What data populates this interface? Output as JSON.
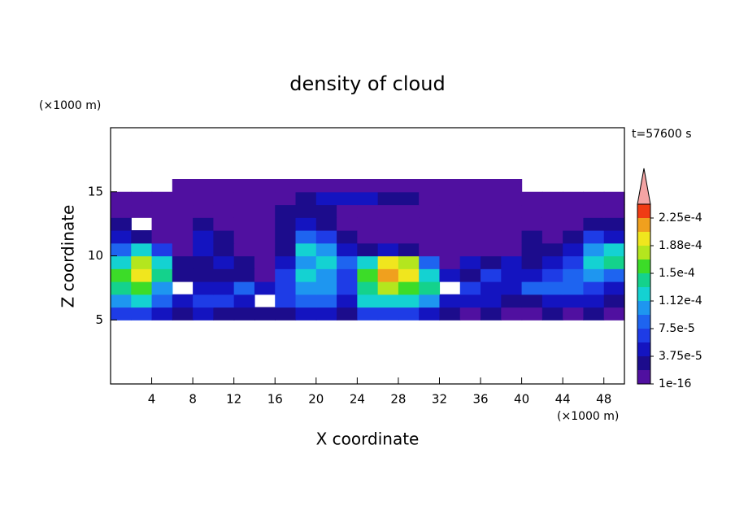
{
  "chart_data": {
    "type": "contour",
    "title": "density of cloud",
    "x_label": "X coordinate",
    "y_label": "Z coordinate",
    "x_unit": "(×1000 m)",
    "y_unit": "(×1000 m)",
    "time_label": "t=57600 s",
    "xlim": [
      0,
      50
    ],
    "xticks": [
      4,
      8,
      12,
      16,
      20,
      24,
      28,
      32,
      36,
      40,
      44,
      48
    ],
    "ylim": [
      0,
      20
    ],
    "yticks": [
      5,
      10,
      15
    ],
    "x": [
      1,
      3,
      5,
      7,
      9,
      11,
      13,
      15,
      17,
      19,
      21,
      23,
      25,
      27,
      29,
      31,
      33,
      35,
      37,
      39,
      41,
      43,
      45,
      47,
      49
    ],
    "y": [
      5.5,
      6.5,
      7.5,
      8.5,
      9.5,
      10.5,
      11.5,
      12.5,
      13.5,
      14.5,
      15.5
    ],
    "z": [
      [
        6e-05,
        7e-05,
        4e-05,
        3e-05,
        4e-05,
        3e-05,
        3e-05,
        2e-05,
        3e-05,
        4e-05,
        4e-05,
        2e-05,
        6e-05,
        7e-05,
        7e-05,
        5e-05,
        2e-05,
        1e-05,
        2e-05,
        1e-05,
        1e-05,
        2e-05,
        1e-05,
        2e-05,
        1e-05
      ],
      [
        0.00011,
        0.00012,
        9e-05,
        5e-05,
        7e-05,
        6e-05,
        5e-05,
        null,
        6e-05,
        9e-05,
        8e-05,
        5e-05,
        0.00012,
        0.00013,
        0.00013,
        0.00011,
        4e-05,
        5e-05,
        4e-05,
        3e-05,
        3e-05,
        5e-05,
        4e-05,
        4e-05,
        3e-05
      ],
      [
        0.00014,
        0.00016,
        0.00011,
        null,
        5e-05,
        4e-05,
        8e-05,
        4e-05,
        7e-05,
        0.0001,
        0.00011,
        7e-05,
        0.00014,
        0.00017,
        0.00016,
        0.00014,
        null,
        6e-05,
        5e-05,
        4e-05,
        8e-05,
        9e-05,
        8e-05,
        6e-05,
        5e-05
      ],
      [
        0.00015,
        0.00019,
        0.00014,
        3e-05,
        2e-05,
        2e-05,
        2e-05,
        1e-05,
        6e-05,
        0.00013,
        0.0001,
        7e-05,
        0.00015,
        0.00021,
        0.00019,
        0.00013,
        4e-05,
        2e-05,
        6e-05,
        5e-05,
        5e-05,
        7e-05,
        9e-05,
        0.00011,
        9e-05
      ],
      [
        0.00013,
        0.00018,
        0.00012,
        2e-05,
        3e-05,
        4e-05,
        2e-05,
        1e-05,
        5e-05,
        0.00011,
        0.00013,
        8e-05,
        0.00013,
        0.00019,
        0.00018,
        8e-05,
        1e-05,
        4e-05,
        2e-05,
        4e-05,
        2e-05,
        5e-05,
        7e-05,
        0.00012,
        0.00014
      ],
      [
        9e-05,
        0.00012,
        6e-05,
        1e-05,
        5e-05,
        2e-05,
        1e-05,
        1e-05,
        3e-05,
        0.00012,
        0.0001,
        5e-05,
        2e-05,
        4e-05,
        2e-05,
        1e-05,
        1e-05,
        1e-05,
        1e-05,
        1e-05,
        2e-05,
        2e-05,
        4e-05,
        0.0001,
        0.00012
      ],
      [
        5e-05,
        3e-05,
        1e-05,
        1e-05,
        4e-05,
        2e-05,
        1e-05,
        1e-05,
        2e-05,
        8e-05,
        6e-05,
        2e-05,
        1e-05,
        1e-05,
        1e-05,
        1e-05,
        1e-05,
        1e-05,
        1e-05,
        1e-05,
        3e-05,
        1e-05,
        2e-05,
        6e-05,
        5e-05
      ],
      [
        3e-05,
        null,
        1e-05,
        1e-05,
        2e-05,
        1e-05,
        1e-05,
        1e-05,
        2e-05,
        4e-05,
        3e-05,
        1e-05,
        1e-05,
        1e-05,
        1e-05,
        1e-05,
        1e-05,
        1e-05,
        1e-05,
        1e-05,
        1e-05,
        1e-05,
        1e-05,
        3e-05,
        2e-05
      ],
      [
        1e-05,
        1e-05,
        1e-05,
        1e-05,
        1e-05,
        1e-05,
        1e-05,
        1e-05,
        3e-05,
        3e-05,
        2e-05,
        1e-05,
        1e-05,
        1e-05,
        1e-05,
        1e-05,
        1e-05,
        1e-05,
        1e-05,
        1e-05,
        1e-05,
        1e-05,
        1e-05,
        1e-05,
        1e-05
      ],
      [
        1e-05,
        1e-05,
        1e-05,
        1e-05,
        1e-05,
        1e-05,
        1e-05,
        1e-05,
        1e-05,
        3e-05,
        4e-05,
        4e-05,
        4e-05,
        3e-05,
        3e-05,
        1e-05,
        1e-05,
        1e-05,
        1e-05,
        1e-05,
        1e-05,
        1e-05,
        1e-05,
        1e-05,
        1e-05
      ],
      [
        null,
        null,
        null,
        1e-05,
        1e-05,
        1e-05,
        1e-05,
        1e-05,
        1e-05,
        1e-05,
        1e-05,
        1e-05,
        1e-05,
        1e-05,
        1e-05,
        1e-05,
        1e-05,
        1e-05,
        1e-05,
        1e-05,
        null,
        null,
        null,
        null,
        null
      ]
    ],
    "colorbar": {
      "levels": [
        1e-16,
        1.875e-05,
        3.75e-05,
        5.625e-05,
        7.5e-05,
        9.375e-05,
        0.0001125,
        0.00013125,
        0.00015,
        0.00016875,
        0.0001875,
        0.00020625,
        0.000225,
        0.00024375
      ],
      "colors": [
        "#5010a0",
        "#1c0c8c",
        "#1414c0",
        "#1e3ce6",
        "#1e64f0",
        "#1e96f0",
        "#14d2d2",
        "#14d28c",
        "#3cdc28",
        "#b4e61e",
        "#f0e61e",
        "#f0a01e",
        "#f03c14"
      ],
      "extend_color": "#f4a4a4",
      "ticks": [
        {
          "value": 1e-16,
          "label": "1e-16"
        },
        {
          "value": 3.75e-05,
          "label": "3.75e-5"
        },
        {
          "value": 7.5e-05,
          "label": "7.5e-5"
        },
        {
          "value": 0.0001125,
          "label": "1.12e-4"
        },
        {
          "value": 0.00015,
          "label": "1.5e-4"
        },
        {
          "value": 0.0001875,
          "label": "1.88e-4"
        },
        {
          "value": 0.000225,
          "label": "2.25e-4"
        }
      ]
    }
  }
}
